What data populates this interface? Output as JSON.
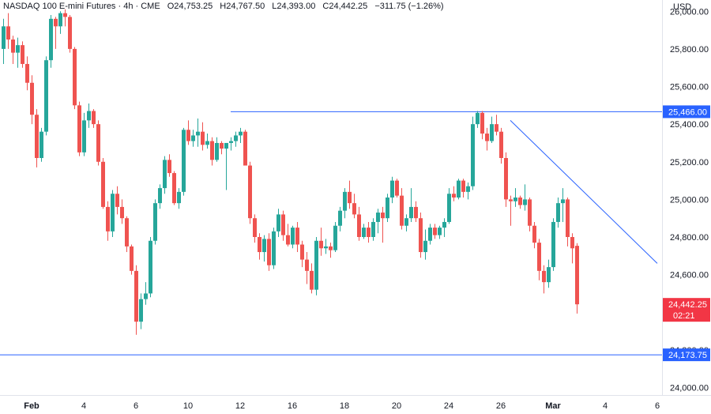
{
  "header": {
    "symbol": "NASDAQ 100 E-mini Futures · 4h · CME",
    "open_label": "O",
    "open": "24,753.25",
    "high_label": "H",
    "high": "24,767.50",
    "low_label": "L",
    "low": "24,393.00",
    "close_label": "C",
    "close": "24,442.25",
    "change": "−311.75 (−1.26%)",
    "currency": "USD"
  },
  "chart_data": {
    "type": "candlestick",
    "ylim": [
      23960,
      26060
    ],
    "y_ticks": [
      {
        "value": 26000,
        "label": "26,000.00"
      },
      {
        "value": 25800,
        "label": "25,800.00"
      },
      {
        "value": 25600,
        "label": "25,600.00"
      },
      {
        "value": 25400,
        "label": "25,400.00"
      },
      {
        "value": 25200,
        "label": "25,200.00"
      },
      {
        "value": 25000,
        "label": "25,000.00"
      },
      {
        "value": 24800,
        "label": "24,800.00"
      },
      {
        "value": 24600,
        "label": "24,600.00"
      },
      {
        "value": 24200,
        "label": "24,200.00"
      },
      {
        "value": 24000,
        "label": "24,000.00"
      }
    ],
    "x_ticks": [
      {
        "index": 6,
        "label": "Feb",
        "bold": true
      },
      {
        "index": 17,
        "label": "4"
      },
      {
        "index": 28,
        "label": "6"
      },
      {
        "index": 39,
        "label": "10"
      },
      {
        "index": 50,
        "label": "12"
      },
      {
        "index": 61,
        "label": "16"
      },
      {
        "index": 72,
        "label": "18"
      },
      {
        "index": 83,
        "label": "20"
      },
      {
        "index": 94,
        "label": "24"
      },
      {
        "index": 105,
        "label": "26"
      },
      {
        "index": 116,
        "label": "Mar",
        "bold": true
      },
      {
        "index": 127,
        "label": "4"
      },
      {
        "index": 138,
        "label": "6"
      }
    ],
    "candles": [
      [
        25800,
        25960,
        25720,
        25920
      ],
      [
        25920,
        25990,
        25800,
        25850
      ],
      [
        25850,
        25870,
        25720,
        25780
      ],
      [
        25780,
        25860,
        25700,
        25820
      ],
      [
        25820,
        25840,
        25700,
        25720
      ],
      [
        25720,
        25760,
        25580,
        25620
      ],
      [
        25620,
        25660,
        25400,
        25450
      ],
      [
        25450,
        25480,
        25170,
        25220
      ],
      [
        25220,
        25380,
        25200,
        25360
      ],
      [
        25360,
        25760,
        25340,
        25740
      ],
      [
        25740,
        25980,
        25700,
        25960
      ],
      [
        25960,
        25970,
        25800,
        25920
      ],
      [
        25920,
        26000,
        25880,
        25990
      ],
      [
        25990,
        26010,
        25920,
        25970
      ],
      [
        25970,
        25980,
        25780,
        25800
      ],
      [
        25800,
        25810,
        25480,
        25500
      ],
      [
        25500,
        25520,
        25230,
        25250
      ],
      [
        25250,
        25460,
        25230,
        25420
      ],
      [
        25420,
        25510,
        25380,
        25470
      ],
      [
        25470,
        25480,
        25380,
        25400
      ],
      [
        25400,
        25420,
        25180,
        25200
      ],
      [
        25200,
        25220,
        24950,
        24960
      ],
      [
        24960,
        24990,
        24780,
        24830
      ],
      [
        24830,
        25050,
        24800,
        25030
      ],
      [
        25030,
        25070,
        24920,
        24960
      ],
      [
        24960,
        25000,
        24870,
        24900
      ],
      [
        24900,
        24910,
        24720,
        24750
      ],
      [
        24750,
        24760,
        24600,
        24620
      ],
      [
        24620,
        24650,
        24280,
        24350
      ],
      [
        24350,
        24500,
        24310,
        24470
      ],
      [
        24470,
        24560,
        24440,
        24500
      ],
      [
        24500,
        24800,
        24480,
        24780
      ],
      [
        24780,
        25000,
        24760,
        24980
      ],
      [
        24980,
        25080,
        24950,
        25060
      ],
      [
        25060,
        25230,
        25030,
        25210
      ],
      [
        25210,
        25240,
        25120,
        25140
      ],
      [
        25140,
        25150,
        24970,
        24980
      ],
      [
        24980,
        25060,
        24950,
        25040
      ],
      [
        25040,
        25380,
        25020,
        25370
      ],
      [
        25370,
        25420,
        25290,
        25310
      ],
      [
        25310,
        25370,
        25280,
        25340
      ],
      [
        25340,
        25430,
        25280,
        25360
      ],
      [
        25360,
        25410,
        25260,
        25290
      ],
      [
        25290,
        25350,
        25270,
        25310
      ],
      [
        25310,
        25330,
        25180,
        25210
      ],
      [
        25210,
        25330,
        25200,
        25300
      ],
      [
        25300,
        25310,
        25240,
        25270
      ],
      [
        25270,
        25280,
        25050,
        25300
      ],
      [
        25300,
        25330,
        25260,
        25310
      ],
      [
        25310,
        25360,
        25280,
        25340
      ],
      [
        25340,
        25380,
        25300,
        25360
      ],
      [
        25360,
        25370,
        25200,
        25180
      ],
      [
        25180,
        25200,
        24870,
        24900
      ],
      [
        24900,
        24920,
        24770,
        24800
      ],
      [
        24800,
        24820,
        24680,
        24720
      ],
      [
        24720,
        24810,
        24670,
        24790
      ],
      [
        24790,
        24820,
        24620,
        24650
      ],
      [
        24650,
        24850,
        24630,
        24830
      ],
      [
        24830,
        24950,
        24800,
        24920
      ],
      [
        24920,
        24940,
        24780,
        24810
      ],
      [
        24810,
        24870,
        24750,
        24760
      ],
      [
        24760,
        24860,
        24740,
        24850
      ],
      [
        24850,
        24880,
        24720,
        24760
      ],
      [
        24760,
        24780,
        24640,
        24680
      ],
      [
        24680,
        24720,
        24550,
        24620
      ],
      [
        24620,
        24660,
        24500,
        24520
      ],
      [
        24520,
        24800,
        24490,
        24780
      ],
      [
        24780,
        24850,
        24700,
        24740
      ],
      [
        24740,
        24790,
        24710,
        24750
      ],
      [
        24750,
        24770,
        24690,
        24730
      ],
      [
        24730,
        24880,
        24720,
        24860
      ],
      [
        24860,
        24960,
        24830,
        24940
      ],
      [
        24940,
        25060,
        24900,
        25040
      ],
      [
        25040,
        25100,
        24950,
        24980
      ],
      [
        24980,
        25030,
        24900,
        24920
      ],
      [
        24920,
        24960,
        24780,
        24800
      ],
      [
        24800,
        24870,
        24790,
        24850
      ],
      [
        24850,
        24880,
        24770,
        24800
      ],
      [
        24800,
        24900,
        24780,
        24880
      ],
      [
        24880,
        24950,
        24820,
        24930
      ],
      [
        24930,
        24960,
        24770,
        24900
      ],
      [
        24900,
        25030,
        24880,
        25010
      ],
      [
        25010,
        25120,
        24980,
        25100
      ],
      [
        25100,
        25110,
        25010,
        25020
      ],
      [
        25020,
        25060,
        24840,
        24860
      ],
      [
        24860,
        24920,
        24830,
        24900
      ],
      [
        24900,
        25060,
        24880,
        24960
      ],
      [
        24960,
        24990,
        24880,
        24900
      ],
      [
        24900,
        24930,
        24690,
        24720
      ],
      [
        24720,
        24840,
        24680,
        24780
      ],
      [
        24780,
        24870,
        24760,
        24850
      ],
      [
        24850,
        24870,
        24790,
        24810
      ],
      [
        24810,
        24860,
        24790,
        24850
      ],
      [
        24850,
        24900,
        24800,
        24880
      ],
      [
        24880,
        25060,
        24870,
        25030
      ],
      [
        25030,
        25070,
        24990,
        25010
      ],
      [
        25010,
        25110,
        25000,
        25100
      ],
      [
        25100,
        25110,
        25010,
        25040
      ],
      [
        25040,
        25090,
        25000,
        25070
      ],
      [
        25070,
        25440,
        25050,
        25400
      ],
      [
        25400,
        25470,
        25380,
        25460
      ],
      [
        25460,
        25470,
        25320,
        25350
      ],
      [
        25350,
        25380,
        25260,
        25310
      ],
      [
        25310,
        25440,
        25300,
        25400
      ],
      [
        25400,
        25450,
        25340,
        25360
      ],
      [
        25360,
        25380,
        25190,
        25220
      ],
      [
        25220,
        25250,
        24960,
        25000
      ],
      [
        25000,
        25020,
        24860,
        24990
      ],
      [
        24990,
        25060,
        24960,
        25010
      ],
      [
        25010,
        25020,
        24950,
        24970
      ],
      [
        24970,
        25080,
        24940,
        25000
      ],
      [
        25000,
        25010,
        24830,
        24860
      ],
      [
        24860,
        24880,
        24740,
        24770
      ],
      [
        24770,
        24790,
        24570,
        24620
      ],
      [
        24620,
        24650,
        24500,
        24560
      ],
      [
        24560,
        24680,
        24530,
        24640
      ],
      [
        24640,
        24900,
        24620,
        24880
      ],
      [
        24880,
        25010,
        24850,
        24980
      ],
      [
        24980,
        25060,
        24880,
        25000
      ],
      [
        25000,
        25010,
        24750,
        24800
      ],
      [
        24800,
        24820,
        24660,
        24740
      ],
      [
        24753.25,
        24767.5,
        24393,
        24442.25
      ]
    ],
    "h_lines": [
      {
        "value": 25466,
        "label": "25,466.00",
        "start_index": 48,
        "style": "segment"
      },
      {
        "value": 24173.75,
        "label": "24,173.75",
        "style": "full"
      }
    ],
    "trendline": {
      "from": {
        "index": 107,
        "value": 25420
      },
      "to": {
        "index": 138,
        "value": 24660
      }
    },
    "last_price": {
      "value": 24442.25,
      "label": "24,442.25",
      "countdown": "02:21"
    },
    "colors": {
      "up": "#26a69a",
      "down": "#ef5350",
      "line": "#2962ff",
      "price_tag": "#f23645",
      "line_tag": "#2962ff"
    }
  }
}
